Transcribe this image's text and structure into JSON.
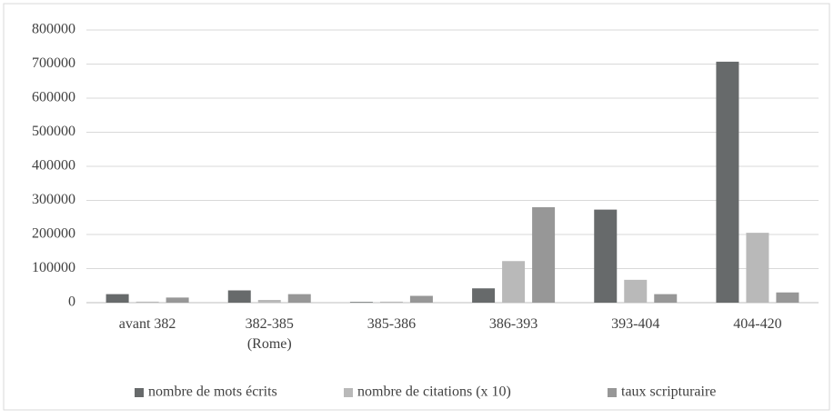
{
  "chart_data": {
    "type": "bar",
    "categories": [
      "avant 382",
      "382-385\n(Rome)",
      "385-386",
      "386-393",
      "393-404",
      "404-420"
    ],
    "series": [
      {
        "name": "nombre de mots écrits",
        "color": "#676a6b",
        "values": [
          25000,
          36000,
          2000,
          42000,
          273000,
          707000
        ]
      },
      {
        "name": "nombre de citations (x 10)",
        "color": "#b9b9b9",
        "values": [
          3000,
          8000,
          3000,
          122000,
          67000,
          205000
        ]
      },
      {
        "name": "taux scripturaire",
        "color": "#979797",
        "values": [
          15000,
          25000,
          20000,
          280000,
          25000,
          30000
        ]
      }
    ],
    "ylim": [
      0,
      800000
    ],
    "yticks": [
      0,
      100000,
      200000,
      300000,
      400000,
      500000,
      600000,
      700000,
      800000
    ],
    "grid": true,
    "legend": "bottom"
  }
}
